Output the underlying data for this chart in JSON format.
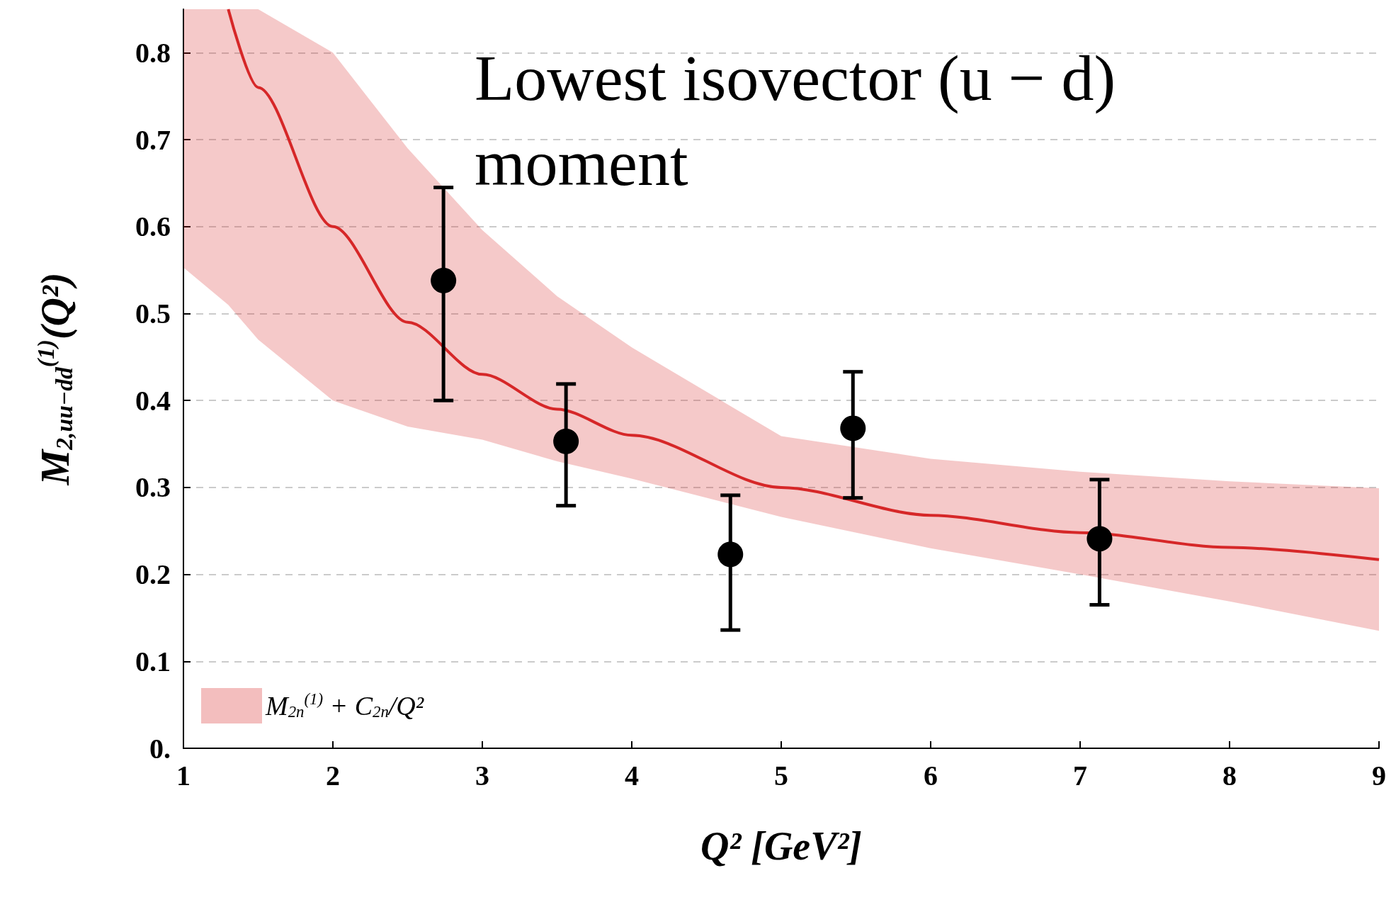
{
  "chart_data": {
    "type": "scatter",
    "xlabel": "Q² [GeV²]",
    "ylabel": "M$_{2,uu−dd}$$^{(1)}$(Q²)",
    "annotations": [
      "Lowest isovector (u − d) moment"
    ],
    "xlim": [
      1,
      9
    ],
    "xticks": [
      1,
      2,
      3,
      4,
      5,
      6,
      7,
      8,
      9
    ],
    "ylim": [
      0,
      0.85
    ],
    "yticks": [
      {
        "value": 0,
        "label": "0."
      },
      0.1,
      0.2,
      0.3,
      0.4,
      0.5,
      0.6,
      0.7,
      0.8
    ],
    "grid": "y",
    "legend": "bottom left",
    "series": [
      {
        "type": "line",
        "name": "M$_{2n}$$^{(1)}$ + C$_{2n}$/Q²",
        "color": "#d62728",
        "line_style": "solid",
        "marker": "none",
        "x": [
          1,
          1.3,
          1.5,
          2,
          2.5,
          3,
          3.5,
          4,
          5,
          6,
          7,
          8,
          9
        ],
        "values": [
          null,
          0.85,
          0.76,
          0.6,
          0.49,
          0.43,
          0.39,
          0.36,
          0.3,
          0.268,
          0.248,
          0.231,
          0.217
        ],
        "lower": [
          0.553,
          0.51,
          0.47,
          0.4,
          0.37,
          0.355,
          0.33,
          0.31,
          0.266,
          0.23,
          0.2,
          0.169,
          0.135
        ],
        "upper": [
          0.85,
          0.85,
          0.85,
          0.8,
          0.69,
          0.596,
          0.52,
          0.461,
          0.359,
          0.333,
          0.318,
          0.307,
          0.299
        ]
      },
      {
        "color": "#000000",
        "marker": "circle",
        "x": [
          2.74,
          3.56,
          4.66,
          5.48,
          7.13
        ],
        "values": [
          0.538,
          0.353,
          0.223,
          0.368,
          0.241
        ],
        "errors": [
          [
            0.4,
            0.645
          ],
          [
            0.279,
            0.419
          ],
          [
            0.136,
            0.291
          ],
          [
            0.288,
            0.433
          ],
          [
            0.165,
            0.309
          ]
        ]
      }
    ]
  }
}
